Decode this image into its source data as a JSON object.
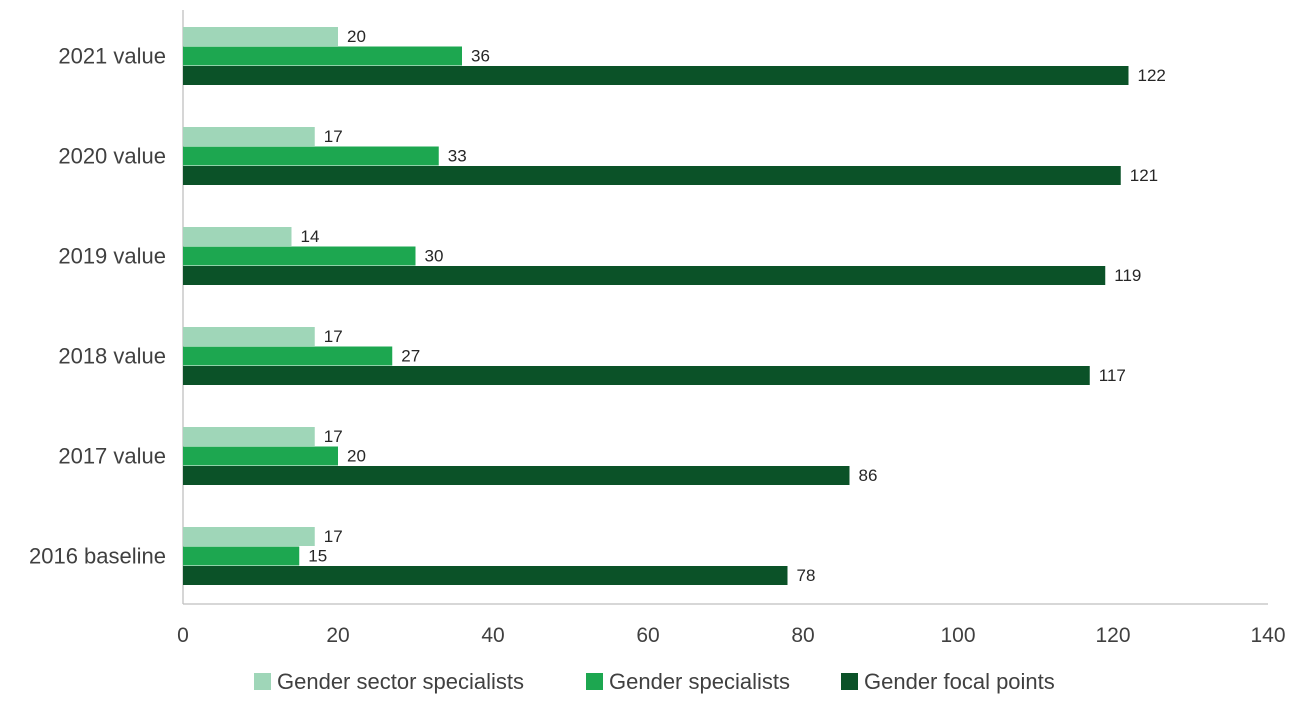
{
  "chart_data": {
    "type": "bar",
    "orientation": "horizontal",
    "title": "",
    "xlabel": "",
    "ylabel": "",
    "categories": [
      "2021 value",
      "2020 value",
      "2019 value",
      "2018 value",
      "2017 value",
      "2016 baseline"
    ],
    "series": [
      {
        "name": "Gender sector specialists",
        "color": "#9fd6b8",
        "values": [
          20,
          17,
          14,
          17,
          17,
          17
        ]
      },
      {
        "name": "Gender specialists",
        "color": "#1da750",
        "values": [
          36,
          33,
          30,
          27,
          20,
          15
        ]
      },
      {
        "name": "Gender focal points",
        "color": "#0b5228",
        "values": [
          122,
          121,
          119,
          117,
          86,
          78
        ]
      }
    ],
    "xlim": [
      0,
      140
    ],
    "xticks": [
      0,
      20,
      40,
      60,
      80,
      100,
      120,
      140
    ],
    "grid": false,
    "data_labels": true,
    "legend_position": "bottom-center",
    "axis_color": "#bfbfbf",
    "text_color": "#404040"
  }
}
